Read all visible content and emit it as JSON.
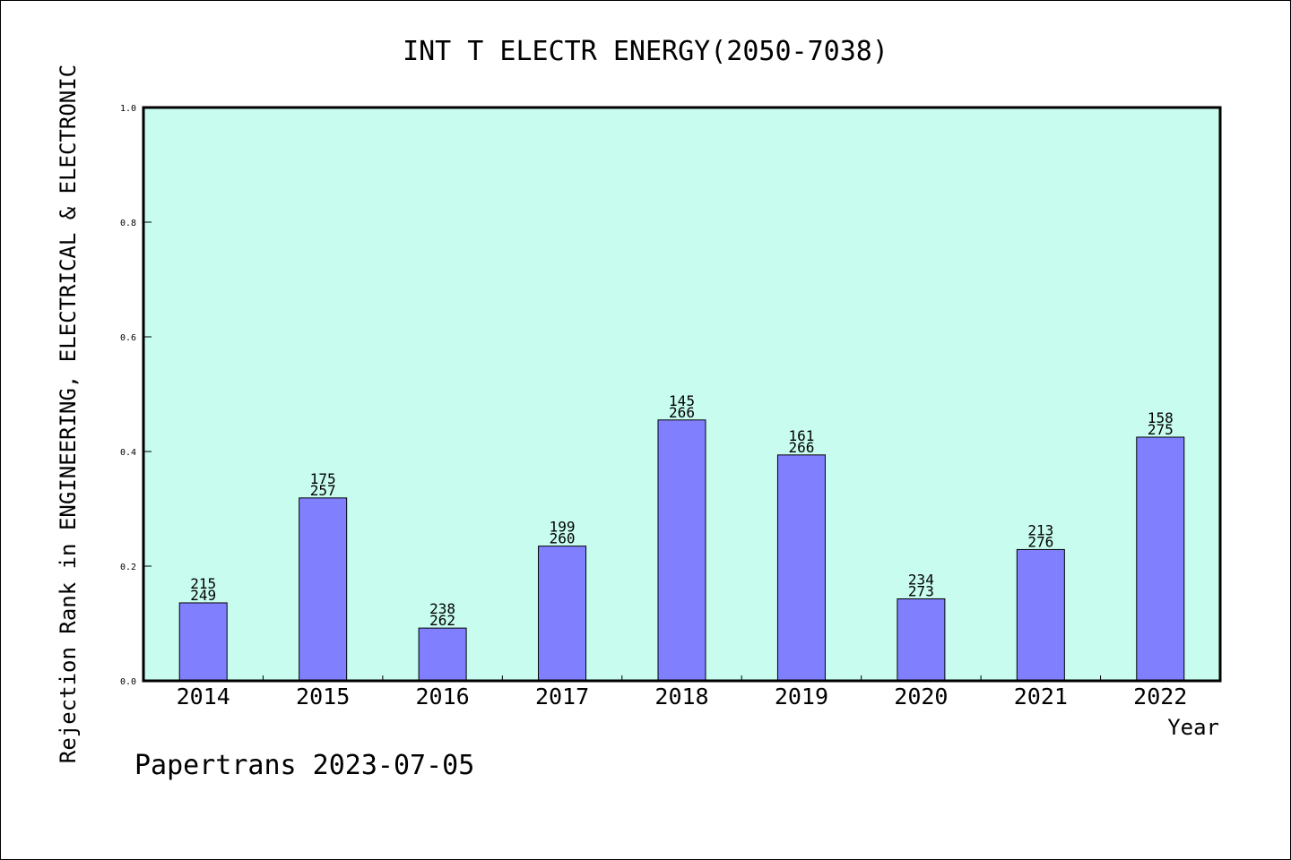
{
  "chart_data": {
    "type": "bar",
    "title": "INT T ELECTR ENERGY(2050-7038)",
    "xlabel": "Year",
    "ylabel": "Rejection Rank in ENGINEERING, ELECTRICAL & ELECTRONIC",
    "categories": [
      "2014",
      "2015",
      "2016",
      "2017",
      "2018",
      "2019",
      "2020",
      "2021",
      "2022"
    ],
    "values": [
      0.136,
      0.319,
      0.092,
      0.235,
      0.455,
      0.394,
      0.143,
      0.229,
      0.425
    ],
    "rank_labels": [
      "215",
      "175",
      "238",
      "199",
      "145",
      "161",
      "234",
      "213",
      "158"
    ],
    "total_labels": [
      "249",
      "257",
      "262",
      "260",
      "266",
      "266",
      "273",
      "276",
      "275"
    ],
    "ylim": [
      0,
      1.0
    ],
    "yticks": [
      "0.0",
      "0.2",
      "0.4",
      "0.6",
      "0.8",
      "1.0"
    ],
    "grid": false,
    "legend": "none",
    "colors": {
      "plot_bg": "#c8fcee",
      "bar": "#8080ff",
      "bar_edge": "#000000"
    }
  },
  "footer": "Papertrans 2023-07-05"
}
